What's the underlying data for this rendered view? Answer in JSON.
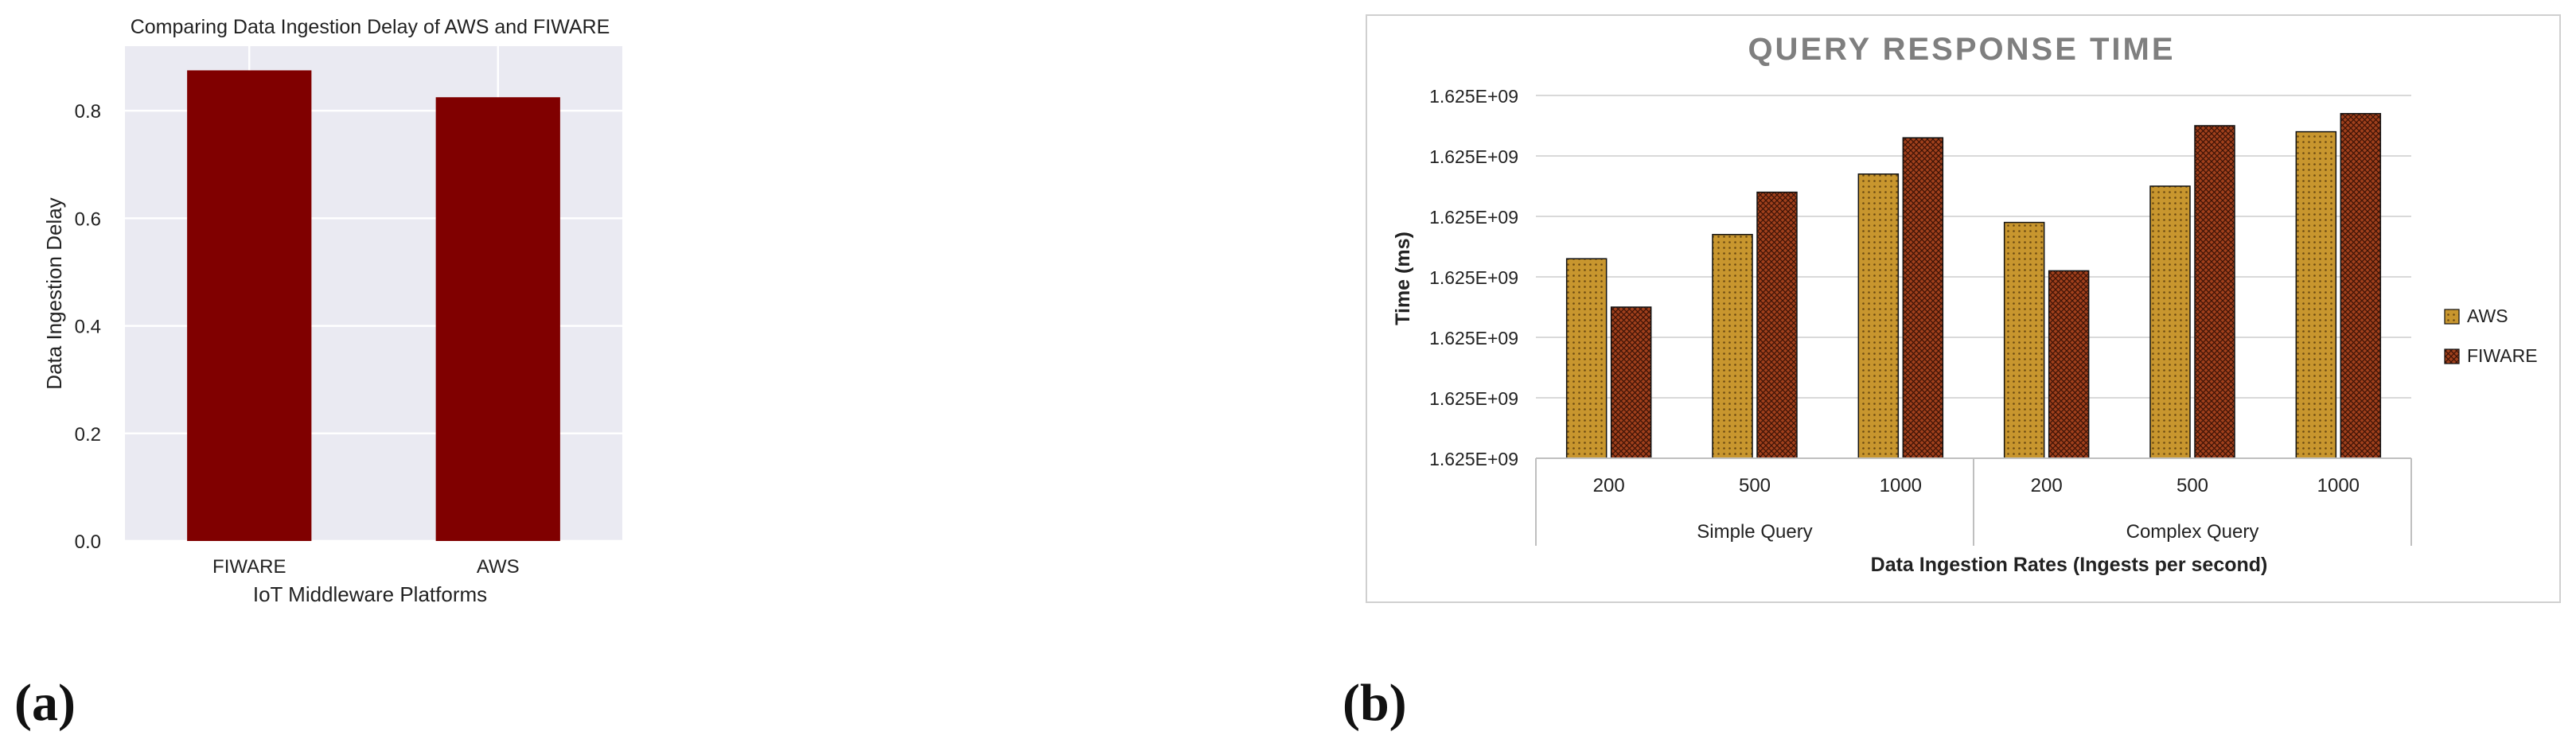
{
  "panels": [
    {
      "label": "(a)"
    },
    {
      "label": "(b)"
    }
  ],
  "colors": {
    "a_bar": "#800000",
    "a_plot_bg": "#eaeaf2",
    "b_aws": "#c8962e",
    "b_fiware": "#a0401c",
    "b_title": "#7f7f7f"
  },
  "chart_data": [
    {
      "type": "bar",
      "title": "Comparing Data Ingestion Delay of AWS and FIWARE",
      "xlabel": "IoT Middleware Platforms",
      "ylabel": "Data Ingestion Delay",
      "categories": [
        "FIWARE",
        "AWS"
      ],
      "values": [
        0.875,
        0.825
      ],
      "ylim": [
        0,
        0.92
      ],
      "yticks": [
        "0.0",
        "0.2",
        "0.4",
        "0.6",
        "0.8"
      ],
      "grid": true
    },
    {
      "type": "bar",
      "title": "QUERY RESPONSE TIME",
      "xlabel": "Data Ingestion Rates (Ingests per second)",
      "ylabel": "Time (ms)",
      "groups": [
        {
          "name": "Simple Query",
          "categories": [
            "200",
            "500",
            "1000"
          ]
        },
        {
          "name": "Complex Query",
          "categories": [
            "200",
            "500",
            "1000"
          ]
        }
      ],
      "series": [
        {
          "name": "AWS",
          "values": [
            3.3,
            3.7,
            4.7,
            3.9,
            4.5,
            5.4
          ]
        },
        {
          "name": "FIWARE",
          "values": [
            2.5,
            4.4,
            5.3,
            3.1,
            5.5,
            5.7
          ]
        }
      ],
      "ylim": [
        0,
        6
      ],
      "yticks": [
        "1.625E+09",
        "1.625E+09",
        "1.625E+09",
        "1.625E+09",
        "1.625E+09",
        "1.625E+09",
        "1.625E+09"
      ],
      "legend": "right",
      "grid": true
    }
  ]
}
